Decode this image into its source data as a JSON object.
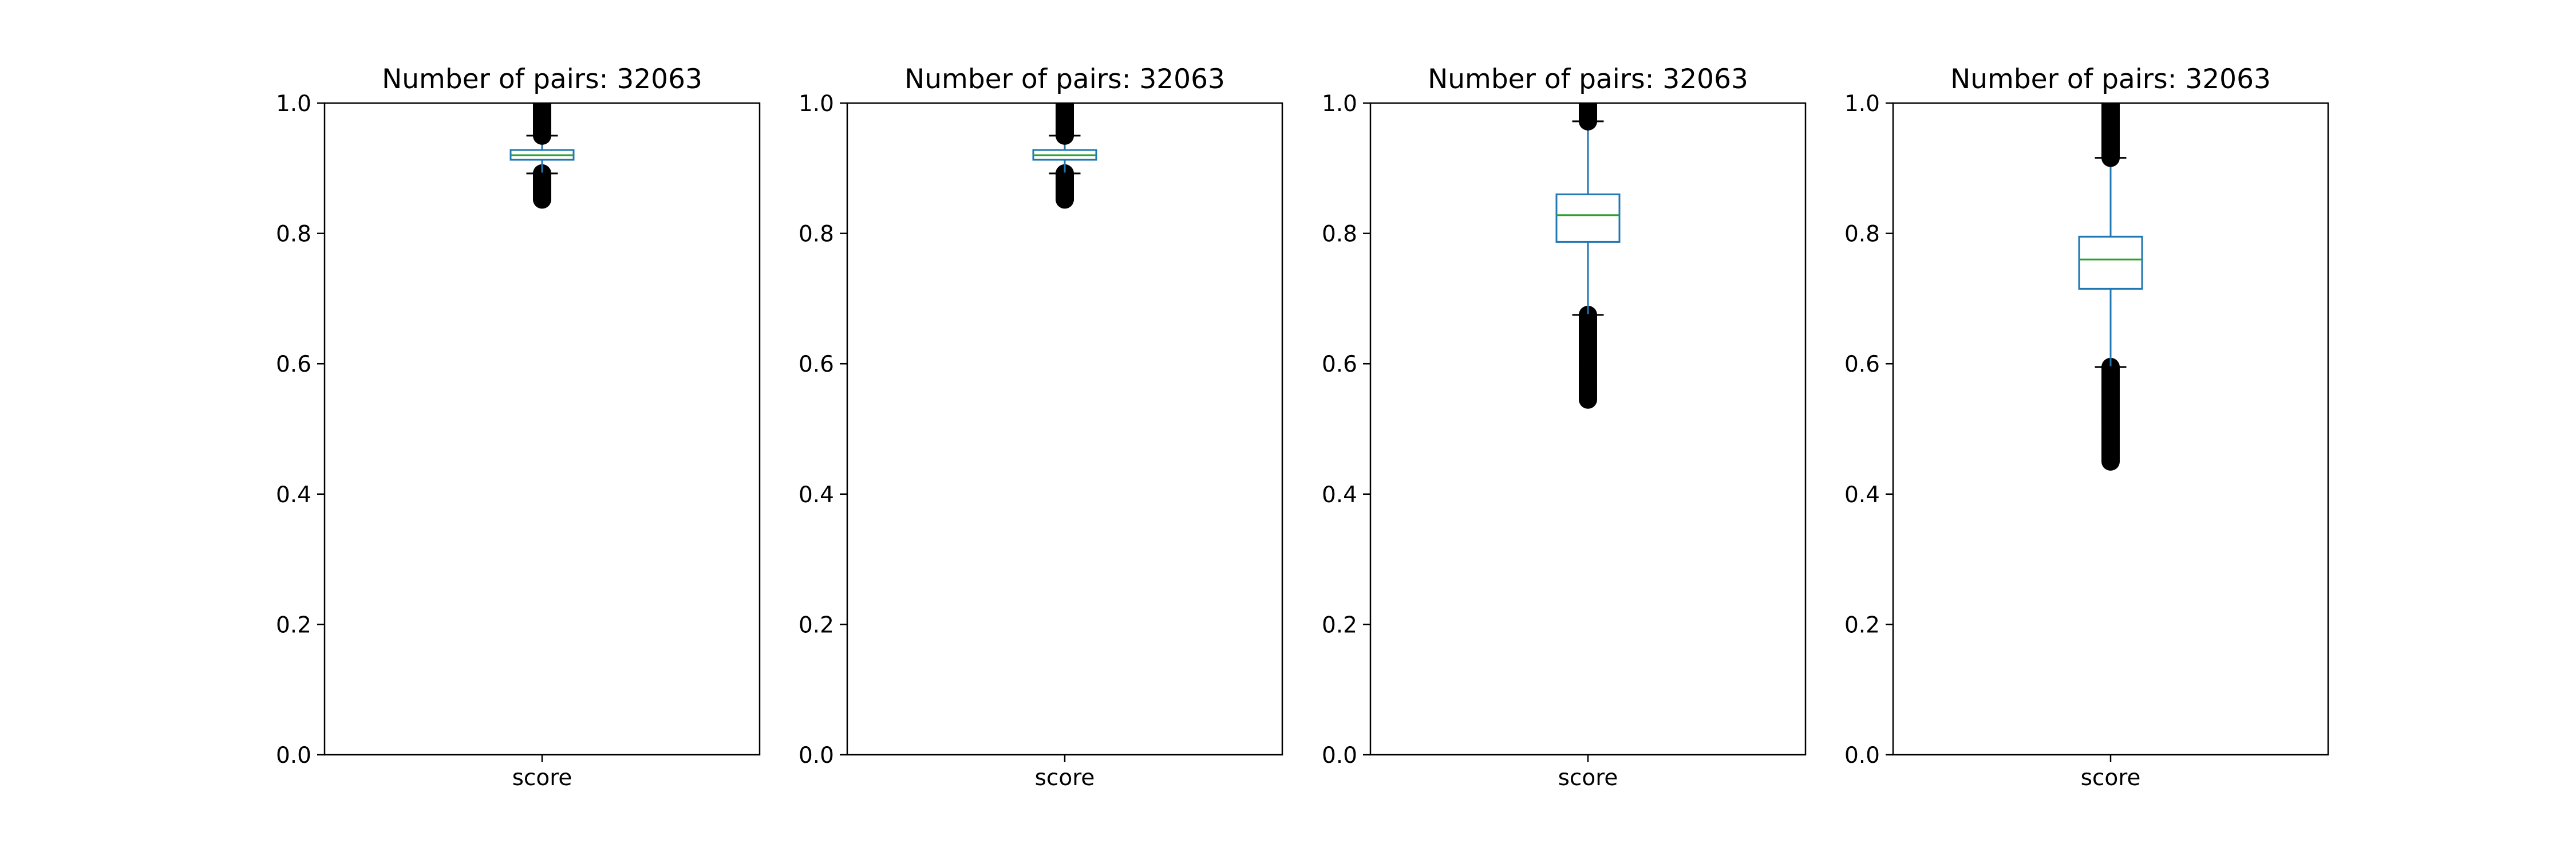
{
  "colors": {
    "box": "#1f77b4",
    "median": "#2ca02c",
    "outlier": "#000000",
    "axes": "#000000"
  },
  "chart_data": [
    {
      "type": "box",
      "title": "Number of pairs: 32063",
      "categories": [
        "score"
      ],
      "ylim": [
        0,
        1
      ],
      "yticks": [
        "0.0",
        "0.2",
        "0.4",
        "0.6",
        "0.8",
        "1.0"
      ],
      "grid": false,
      "series": [
        {
          "whisker_low": 0.892,
          "q1": 0.913,
          "median": 0.92,
          "q3": 0.928,
          "whisker_high": 0.95,
          "outliers_low_range": [
            0.852,
            0.892
          ],
          "outliers_high_range": [
            0.95,
            1.0
          ]
        }
      ]
    },
    {
      "type": "box",
      "title": "Number of pairs: 32063",
      "categories": [
        "score"
      ],
      "ylim": [
        0,
        1
      ],
      "yticks": [
        "0.0",
        "0.2",
        "0.4",
        "0.6",
        "0.8",
        "1.0"
      ],
      "grid": false,
      "series": [
        {
          "whisker_low": 0.892,
          "q1": 0.913,
          "median": 0.92,
          "q3": 0.928,
          "whisker_high": 0.95,
          "outliers_low_range": [
            0.852,
            0.892
          ],
          "outliers_high_range": [
            0.95,
            1.0
          ]
        }
      ]
    },
    {
      "type": "box",
      "title": "Number of pairs: 32063",
      "categories": [
        "score"
      ],
      "ylim": [
        0,
        1
      ],
      "yticks": [
        "0.0",
        "0.2",
        "0.4",
        "0.6",
        "0.8",
        "1.0"
      ],
      "grid": false,
      "series": [
        {
          "whisker_low": 0.675,
          "q1": 0.787,
          "median": 0.828,
          "q3": 0.86,
          "whisker_high": 0.972,
          "outliers_low_range": [
            0.545,
            0.675
          ],
          "outliers_high_range": [
            0.972,
            1.0
          ]
        }
      ]
    },
    {
      "type": "box",
      "title": "Number of pairs: 32063",
      "categories": [
        "score"
      ],
      "ylim": [
        0,
        1
      ],
      "yticks": [
        "0.0",
        "0.2",
        "0.4",
        "0.6",
        "0.8",
        "1.0"
      ],
      "grid": false,
      "series": [
        {
          "whisker_low": 0.595,
          "q1": 0.715,
          "median": 0.76,
          "q3": 0.795,
          "whisker_high": 0.916,
          "outliers_low_range": [
            0.45,
            0.595
          ],
          "outliers_high_range": [
            0.916,
            1.0
          ]
        }
      ]
    }
  ]
}
